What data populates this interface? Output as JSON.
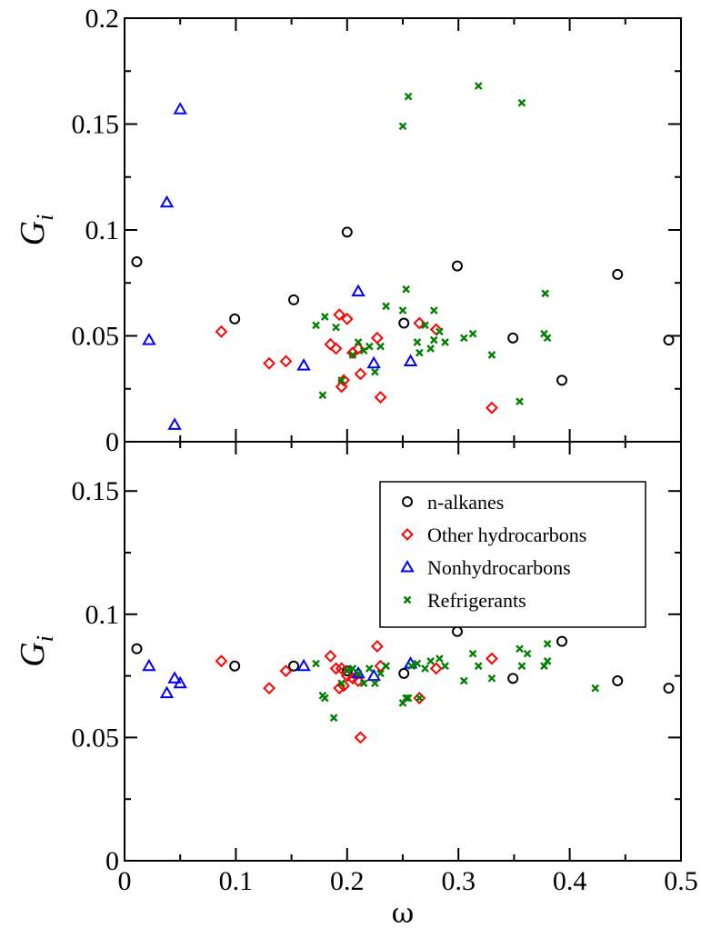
{
  "chart_data": [
    {
      "type": "scatter",
      "panel": "top",
      "xlabel": "",
      "ylabel": "G",
      "ylabel_sub": "i",
      "xlim": [
        0,
        0.5
      ],
      "ylim": [
        0,
        0.2
      ],
      "yticks": [
        0,
        0.05,
        0.1,
        0.15,
        0.2
      ],
      "ytick_labels": [
        "0",
        "0.05",
        "0.1",
        "0.15",
        "0.2"
      ],
      "grid": false,
      "series": [
        {
          "name": "n-alkanes",
          "marker": "circle",
          "color": "#000000",
          "x": [
            0.011,
            0.099,
            0.152,
            0.2,
            0.251,
            0.299,
            0.349,
            0.393,
            0.443,
            0.489
          ],
          "y": [
            0.085,
            0.058,
            0.067,
            0.099,
            0.056,
            0.083,
            0.049,
            0.029,
            0.079,
            0.048
          ]
        },
        {
          "name": "Other hydrocarbons",
          "marker": "diamond",
          "color": "#ff0000",
          "x": [
            0.087,
            0.13,
            0.145,
            0.185,
            0.19,
            0.193,
            0.195,
            0.197,
            0.2,
            0.205,
            0.21,
            0.212,
            0.227,
            0.23,
            0.265,
            0.28,
            0.33
          ],
          "y": [
            0.052,
            0.037,
            0.038,
            0.046,
            0.044,
            0.06,
            0.026,
            0.029,
            0.058,
            0.042,
            0.044,
            0.032,
            0.049,
            0.021,
            0.056,
            0.053,
            0.016
          ]
        },
        {
          "name": "Nonhydrocarbons",
          "marker": "triangle",
          "color": "#0000ff",
          "x": [
            0.022,
            0.038,
            0.045,
            0.05,
            0.161,
            0.21,
            0.224,
            0.257
          ],
          "y": [
            0.048,
            0.113,
            0.008,
            0.157,
            0.036,
            0.071,
            0.037,
            0.038
          ]
        },
        {
          "name": "Refrigerants",
          "marker": "x",
          "color": "#008000",
          "x": [
            0.172,
            0.178,
            0.18,
            0.19,
            0.195,
            0.205,
            0.21,
            0.215,
            0.22,
            0.225,
            0.23,
            0.235,
            0.25,
            0.25,
            0.253,
            0.255,
            0.263,
            0.265,
            0.27,
            0.275,
            0.278,
            0.278,
            0.283,
            0.288,
            0.305,
            0.313,
            0.318,
            0.33,
            0.355,
            0.357,
            0.377,
            0.378,
            0.38
          ],
          "y": [
            0.055,
            0.022,
            0.059,
            0.054,
            0.029,
            0.041,
            0.047,
            0.043,
            0.045,
            0.033,
            0.045,
            0.064,
            0.062,
            0.149,
            0.072,
            0.163,
            0.047,
            0.042,
            0.055,
            0.044,
            0.048,
            0.062,
            0.052,
            0.047,
            0.049,
            0.051,
            0.168,
            0.041,
            0.019,
            0.16,
            0.051,
            0.07,
            0.049
          ]
        }
      ]
    },
    {
      "type": "scatter",
      "panel": "bottom",
      "xlabel": "ω",
      "ylabel": "G",
      "ylabel_sub": "i",
      "xlim": [
        0,
        0.5
      ],
      "ylim": [
        0,
        0.17
      ],
      "xticks": [
        0,
        0.1,
        0.2,
        0.3,
        0.4,
        0.5
      ],
      "xtick_labels": [
        "0",
        "0.1",
        "0.2",
        "0.3",
        "0.4",
        "0.5"
      ],
      "yticks": [
        0,
        0.05,
        0.1,
        0.15
      ],
      "ytick_labels": [
        "0",
        "0.05",
        "0.1",
        "0.15"
      ],
      "grid": false,
      "legend": "top-right",
      "legend_entries": [
        "n-alkanes",
        "Other hydrocarbons",
        "Nonhydrocarbons",
        "Refrigerants"
      ],
      "series": [
        {
          "name": "n-alkanes",
          "marker": "circle",
          "color": "#000000",
          "x": [
            0.011,
            0.099,
            0.152,
            0.2,
            0.251,
            0.299,
            0.349,
            0.393,
            0.443,
            0.489
          ],
          "y": [
            0.086,
            0.079,
            0.079,
            0.077,
            0.076,
            0.093,
            0.074,
            0.089,
            0.073,
            0.07
          ]
        },
        {
          "name": "Other hydrocarbons",
          "marker": "diamond",
          "color": "#ff0000",
          "x": [
            0.087,
            0.13,
            0.145,
            0.185,
            0.19,
            0.193,
            0.195,
            0.197,
            0.2,
            0.205,
            0.21,
            0.212,
            0.227,
            0.23,
            0.265,
            0.28,
            0.33
          ],
          "y": [
            0.081,
            0.07,
            0.077,
            0.083,
            0.078,
            0.07,
            0.078,
            0.071,
            0.075,
            0.074,
            0.073,
            0.05,
            0.087,
            0.079,
            0.066,
            0.078,
            0.082
          ]
        },
        {
          "name": "Nonhydrocarbons",
          "marker": "triangle",
          "color": "#0000ff",
          "x": [
            0.022,
            0.038,
            0.045,
            0.05,
            0.161,
            0.21,
            0.224,
            0.257
          ],
          "y": [
            0.079,
            0.068,
            0.074,
            0.072,
            0.079,
            0.076,
            0.075,
            0.08
          ]
        },
        {
          "name": "Refrigerants",
          "marker": "x",
          "color": "#008000",
          "x": [
            0.172,
            0.178,
            0.18,
            0.188,
            0.195,
            0.2,
            0.205,
            0.21,
            0.215,
            0.22,
            0.225,
            0.23,
            0.235,
            0.25,
            0.253,
            0.255,
            0.258,
            0.263,
            0.265,
            0.27,
            0.275,
            0.278,
            0.283,
            0.288,
            0.305,
            0.313,
            0.318,
            0.33,
            0.355,
            0.357,
            0.362,
            0.377,
            0.38,
            0.38,
            0.423
          ],
          "y": [
            0.08,
            0.067,
            0.066,
            0.058,
            0.072,
            0.077,
            0.078,
            0.076,
            0.072,
            0.078,
            0.072,
            0.076,
            0.079,
            0.064,
            0.066,
            0.066,
            0.079,
            0.08,
            0.066,
            0.078,
            0.081,
            0.097,
            0.082,
            0.079,
            0.073,
            0.084,
            0.079,
            0.074,
            0.086,
            0.079,
            0.084,
            0.079,
            0.088,
            0.081,
            0.07
          ]
        }
      ]
    }
  ]
}
